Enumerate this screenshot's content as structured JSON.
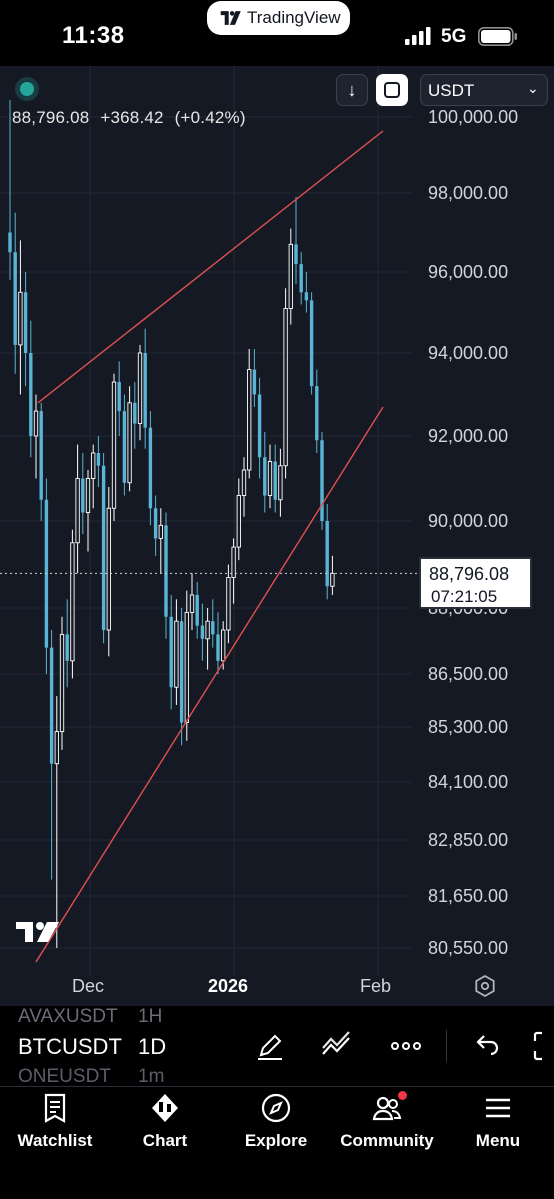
{
  "status_bar": {
    "time": "11:38",
    "app_pill": "TradingView",
    "network": "5G"
  },
  "header": {
    "last_price": "88,796.08",
    "change": "+368.42",
    "change_pct": "(+0.42%)",
    "currency": "USDT"
  },
  "price_axis": [
    "100,000.00",
    "98,000.00",
    "96,000.00",
    "94,000.00",
    "92,000.00",
    "90,000.00",
    "88,000.00",
    "86,500.00",
    "85,300.00",
    "84,100.00",
    "82,850.00",
    "81,650.00",
    "80,550.00"
  ],
  "last_price_box": {
    "price": "88,796.08",
    "countdown": "07:21:05"
  },
  "time_axis": [
    "Dec",
    "2026",
    "Feb"
  ],
  "symbol_switcher": {
    "prev": {
      "symbol": "AVAXUSDT",
      "tf": "1H"
    },
    "current": {
      "symbol": "BTCUSDT",
      "tf": "1D"
    },
    "next": {
      "symbol": "ONEUSDT",
      "tf": "1m"
    }
  },
  "toolbar_icons": [
    "pen-icon",
    "indicators-icon",
    "more-icon",
    "undo-icon",
    "fullscreen-icon"
  ],
  "tabs": [
    {
      "label": "Watchlist",
      "icon": "watchlist-icon"
    },
    {
      "label": "Chart",
      "icon": "chart-icon"
    },
    {
      "label": "Explore",
      "icon": "compass-icon"
    },
    {
      "label": "Community",
      "icon": "community-icon"
    },
    {
      "label": "Menu",
      "icon": "menu-icon"
    }
  ],
  "colors": {
    "up": "#ffffff",
    "down": "#5ab4d6",
    "trendline": "#e0504f",
    "background": "#151924"
  },
  "chart_data": {
    "type": "candlestick",
    "symbol": "BTCUSDT",
    "interval": "1D",
    "quote_currency": "USDT",
    "x_ticks": [
      "Dec",
      "2026",
      "Feb"
    ],
    "ylim": [
      80000,
      100500
    ],
    "y_ticks": [
      100000,
      98000,
      96000,
      94000,
      92000,
      90000,
      88000,
      86500,
      85300,
      84100,
      82850,
      81650,
      80550
    ],
    "last_price": 88796.08,
    "ohlc": [
      [
        97000,
        100500,
        95800,
        96500
      ],
      [
        96500,
        97500,
        93500,
        94200
      ],
      [
        94200,
        96800,
        93000,
        95500
      ],
      [
        95500,
        96000,
        93200,
        94000
      ],
      [
        94000,
        94800,
        91500,
        92000
      ],
      [
        92000,
        93000,
        91000,
        92600
      ],
      [
        92600,
        92800,
        90000,
        90500
      ],
      [
        90500,
        91000,
        86500,
        87100
      ],
      [
        87100,
        87500,
        82000,
        84500
      ],
      [
        84500,
        86000,
        80550,
        85200
      ],
      [
        85200,
        87800,
        84800,
        87400
      ],
      [
        87400,
        88200,
        86200,
        86800
      ],
      [
        86800,
        89800,
        86400,
        89500
      ],
      [
        89500,
        91800,
        88800,
        91000
      ],
      [
        91000,
        91600,
        89700,
        90200
      ],
      [
        90200,
        91200,
        89300,
        91000
      ],
      [
        91000,
        91800,
        90300,
        91600
      ],
      [
        91600,
        92000,
        90800,
        91300
      ],
      [
        91300,
        91600,
        87200,
        87500
      ],
      [
        87500,
        90800,
        86900,
        90300
      ],
      [
        90300,
        93500,
        90000,
        93300
      ],
      [
        93300,
        93800,
        92000,
        92600
      ],
      [
        92600,
        93000,
        90600,
        90900
      ],
      [
        90900,
        93200,
        90700,
        92800
      ],
      [
        92800,
        93300,
        91700,
        92300
      ],
      [
        92300,
        94200,
        91900,
        94000
      ],
      [
        94000,
        94600,
        91700,
        92200
      ],
      [
        92200,
        92600,
        89900,
        90300
      ],
      [
        90300,
        90600,
        89200,
        89600
      ],
      [
        89600,
        90300,
        88800,
        89900
      ],
      [
        89900,
        90200,
        87300,
        87800
      ],
      [
        87800,
        88300,
        85700,
        86200
      ],
      [
        86200,
        88200,
        85800,
        87700
      ],
      [
        87700,
        88000,
        84900,
        85400
      ],
      [
        85400,
        88400,
        85000,
        87900
      ],
      [
        87900,
        88800,
        87500,
        88300
      ],
      [
        88300,
        88600,
        87300,
        87600
      ],
      [
        87600,
        88100,
        86800,
        87300
      ],
      [
        87300,
        88000,
        86600,
        87700
      ],
      [
        87700,
        88200,
        87100,
        87400
      ],
      [
        87400,
        87900,
        86500,
        86800
      ],
      [
        86800,
        87700,
        86600,
        87500
      ],
      [
        87500,
        89000,
        87200,
        88700
      ],
      [
        88700,
        89600,
        88100,
        89400
      ],
      [
        89400,
        91000,
        89100,
        90600
      ],
      [
        90600,
        91500,
        90100,
        91200
      ],
      [
        91200,
        94100,
        91000,
        93600
      ],
      [
        93600,
        94100,
        92700,
        93000
      ],
      [
        93000,
        93400,
        91000,
        91500
      ],
      [
        91500,
        92100,
        90200,
        90600
      ],
      [
        90600,
        91800,
        90300,
        91400
      ],
      [
        91400,
        91800,
        90200,
        90500
      ],
      [
        90500,
        91700,
        90100,
        91300
      ],
      [
        91300,
        95600,
        91000,
        95100
      ],
      [
        95100,
        97100,
        94700,
        96700
      ],
      [
        96700,
        97900,
        95700,
        96200
      ],
      [
        96200,
        96500,
        95200,
        95500
      ],
      [
        95500,
        96000,
        95000,
        95300
      ],
      [
        95300,
        95500,
        93000,
        93200
      ],
      [
        93200,
        93600,
        91600,
        91900
      ],
      [
        91900,
        92100,
        89800,
        90000
      ],
      [
        90000,
        90400,
        88200,
        88500
      ],
      [
        88500,
        89200,
        88300,
        88796.08
      ]
    ],
    "trendlines": [
      {
        "name": "upper",
        "from": [
          "2025-11-15",
          92800
        ],
        "to": [
          "2026-02-06",
          99800
        ]
      },
      {
        "name": "lower",
        "from": [
          "2025-11-14",
          80000
        ],
        "to": [
          "2026-02-06",
          91500
        ]
      }
    ]
  }
}
